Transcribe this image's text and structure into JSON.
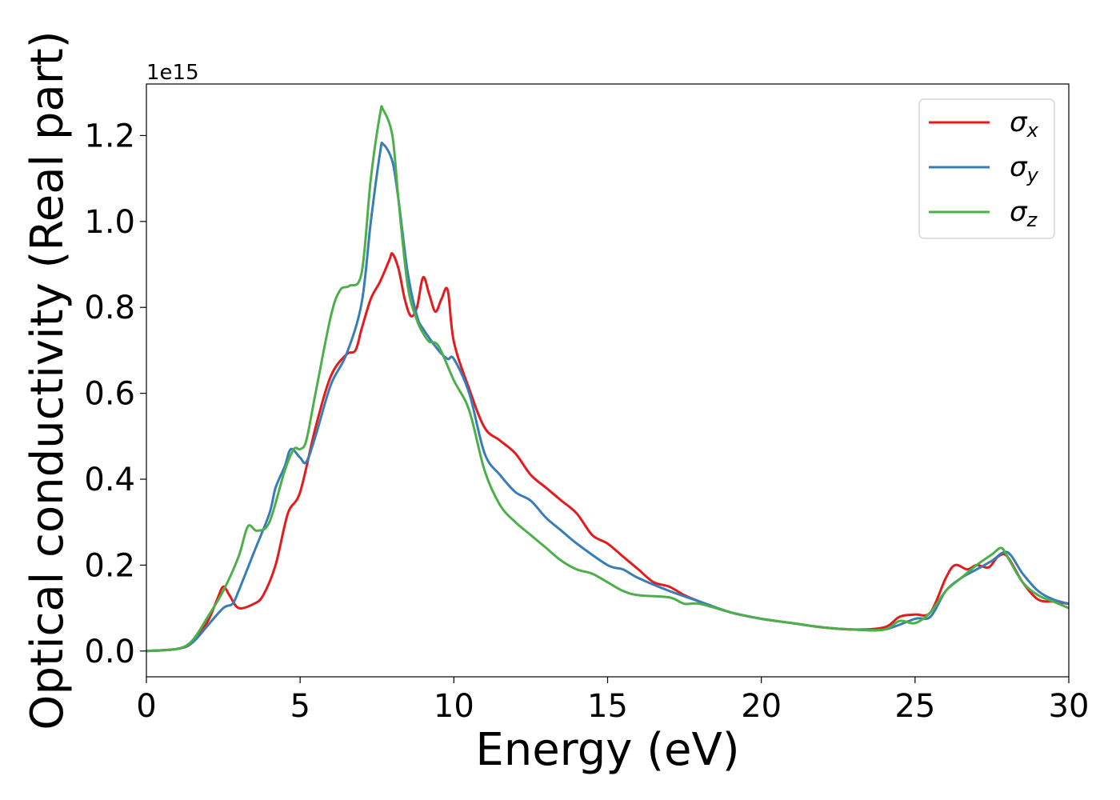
{
  "chart_data": {
    "type": "line",
    "xlabel": "Energy (eV)",
    "ylabel": "Optical conductivity (Real part)",
    "y_offset_label": "1e15",
    "xlim": [
      0,
      30
    ],
    "ylim": [
      -0.06,
      1.32
    ],
    "x_ticks": [
      0,
      5,
      10,
      15,
      20,
      25,
      30
    ],
    "x_tick_labels": [
      "0",
      "5",
      "10",
      "15",
      "20",
      "25",
      "30"
    ],
    "y_ticks": [
      0.0,
      0.2,
      0.4,
      0.6,
      0.8,
      1.0,
      1.2
    ],
    "y_tick_labels": [
      "0.0",
      "0.2",
      "0.4",
      "0.6",
      "0.8",
      "1.0",
      "1.2"
    ],
    "grid": false,
    "legend_position": "top-right",
    "series": [
      {
        "name": "σ",
        "subscript": "x",
        "color": "#e41a1c",
        "x": [
          0,
          1,
          1.5,
          2.0,
          2.3,
          2.5,
          2.7,
          3.0,
          3.5,
          3.8,
          4.2,
          4.6,
          5.0,
          5.5,
          6.0,
          6.5,
          6.8,
          7.0,
          7.3,
          7.6,
          7.9,
          8.0,
          8.2,
          8.4,
          8.6,
          8.8,
          9.0,
          9.2,
          9.4,
          9.6,
          9.8,
          10.0,
          10.5,
          11.0,
          11.5,
          12.0,
          12.5,
          13.0,
          13.5,
          14.0,
          14.5,
          15.0,
          15.5,
          16.0,
          16.5,
          17.0,
          17.5,
          18.0,
          19.0,
          20.0,
          21.0,
          22.0,
          23.0,
          24.0,
          24.5,
          25.0,
          25.5,
          26.0,
          26.3,
          26.7,
          27.0,
          27.4,
          27.7,
          28.0,
          28.5,
          29.0,
          29.5,
          30.0
        ],
        "y": [
          0.0,
          0.005,
          0.02,
          0.07,
          0.12,
          0.15,
          0.13,
          0.1,
          0.11,
          0.13,
          0.2,
          0.32,
          0.37,
          0.52,
          0.64,
          0.69,
          0.7,
          0.75,
          0.82,
          0.86,
          0.91,
          0.925,
          0.89,
          0.82,
          0.78,
          0.8,
          0.87,
          0.83,
          0.79,
          0.82,
          0.84,
          0.72,
          0.61,
          0.52,
          0.49,
          0.46,
          0.41,
          0.38,
          0.35,
          0.32,
          0.27,
          0.25,
          0.22,
          0.19,
          0.16,
          0.15,
          0.13,
          0.115,
          0.09,
          0.075,
          0.065,
          0.055,
          0.05,
          0.055,
          0.08,
          0.085,
          0.09,
          0.17,
          0.2,
          0.19,
          0.2,
          0.195,
          0.22,
          0.22,
          0.16,
          0.12,
          0.115,
          0.11
        ]
      },
      {
        "name": "σ",
        "subscript": "y",
        "color": "#377eb8",
        "x": [
          0,
          1,
          1.5,
          2.0,
          2.5,
          2.8,
          3.0,
          3.5,
          4.0,
          4.2,
          4.5,
          4.7,
          5.0,
          5.2,
          5.5,
          6.0,
          6.5,
          7.0,
          7.3,
          7.6,
          7.7,
          8.0,
          8.2,
          8.5,
          8.8,
          9.0,
          9.5,
          9.8,
          10.0,
          10.5,
          11.0,
          11.5,
          12.0,
          12.5,
          13.0,
          13.5,
          14.0,
          15.0,
          15.5,
          16.0,
          17.0,
          18.0,
          19.0,
          20.0,
          21.0,
          22.0,
          23.0,
          24.0,
          25.0,
          25.5,
          26.0,
          26.5,
          27.0,
          27.5,
          28.0,
          28.5,
          29.0,
          29.5,
          30.0
        ],
        "y": [
          0.0,
          0.005,
          0.02,
          0.06,
          0.1,
          0.11,
          0.14,
          0.23,
          0.32,
          0.38,
          0.43,
          0.47,
          0.45,
          0.44,
          0.5,
          0.62,
          0.69,
          0.81,
          1.0,
          1.16,
          1.18,
          1.14,
          1.05,
          0.88,
          0.78,
          0.75,
          0.7,
          0.68,
          0.68,
          0.6,
          0.46,
          0.41,
          0.37,
          0.35,
          0.31,
          0.28,
          0.25,
          0.2,
          0.19,
          0.17,
          0.14,
          0.115,
          0.09,
          0.075,
          0.065,
          0.055,
          0.05,
          0.05,
          0.075,
          0.08,
          0.14,
          0.17,
          0.19,
          0.21,
          0.23,
          0.18,
          0.14,
          0.12,
          0.11
        ]
      },
      {
        "name": "σ",
        "subscript": "z",
        "color": "#4daf4a",
        "x": [
          0,
          1,
          1.5,
          2.0,
          2.5,
          3.0,
          3.3,
          3.6,
          4.0,
          4.5,
          4.8,
          5.0,
          5.2,
          5.5,
          6.0,
          6.3,
          6.6,
          7.0,
          7.3,
          7.6,
          7.7,
          8.0,
          8.2,
          8.5,
          8.8,
          9.0,
          9.2,
          9.5,
          10.0,
          10.5,
          11.0,
          11.5,
          12.0,
          12.5,
          13.0,
          13.5,
          14.0,
          14.5,
          15.0,
          15.5,
          16.0,
          17.0,
          17.5,
          18.0,
          19.0,
          20.0,
          21.0,
          22.0,
          23.0,
          24.0,
          24.5,
          25.0,
          25.5,
          26.0,
          26.5,
          27.0,
          27.5,
          27.8,
          28.0,
          28.5,
          29.0,
          29.5,
          30.0
        ],
        "y": [
          0.0,
          0.005,
          0.025,
          0.08,
          0.14,
          0.22,
          0.29,
          0.28,
          0.3,
          0.42,
          0.47,
          0.47,
          0.49,
          0.6,
          0.78,
          0.84,
          0.85,
          0.88,
          1.1,
          1.25,
          1.26,
          1.2,
          1.05,
          0.85,
          0.77,
          0.74,
          0.72,
          0.71,
          0.63,
          0.56,
          0.42,
          0.34,
          0.3,
          0.27,
          0.24,
          0.21,
          0.19,
          0.18,
          0.16,
          0.14,
          0.13,
          0.125,
          0.11,
          0.11,
          0.09,
          0.075,
          0.065,
          0.055,
          0.05,
          0.05,
          0.07,
          0.065,
          0.09,
          0.14,
          0.17,
          0.2,
          0.225,
          0.24,
          0.22,
          0.16,
          0.13,
          0.115,
          0.1
        ]
      }
    ]
  }
}
